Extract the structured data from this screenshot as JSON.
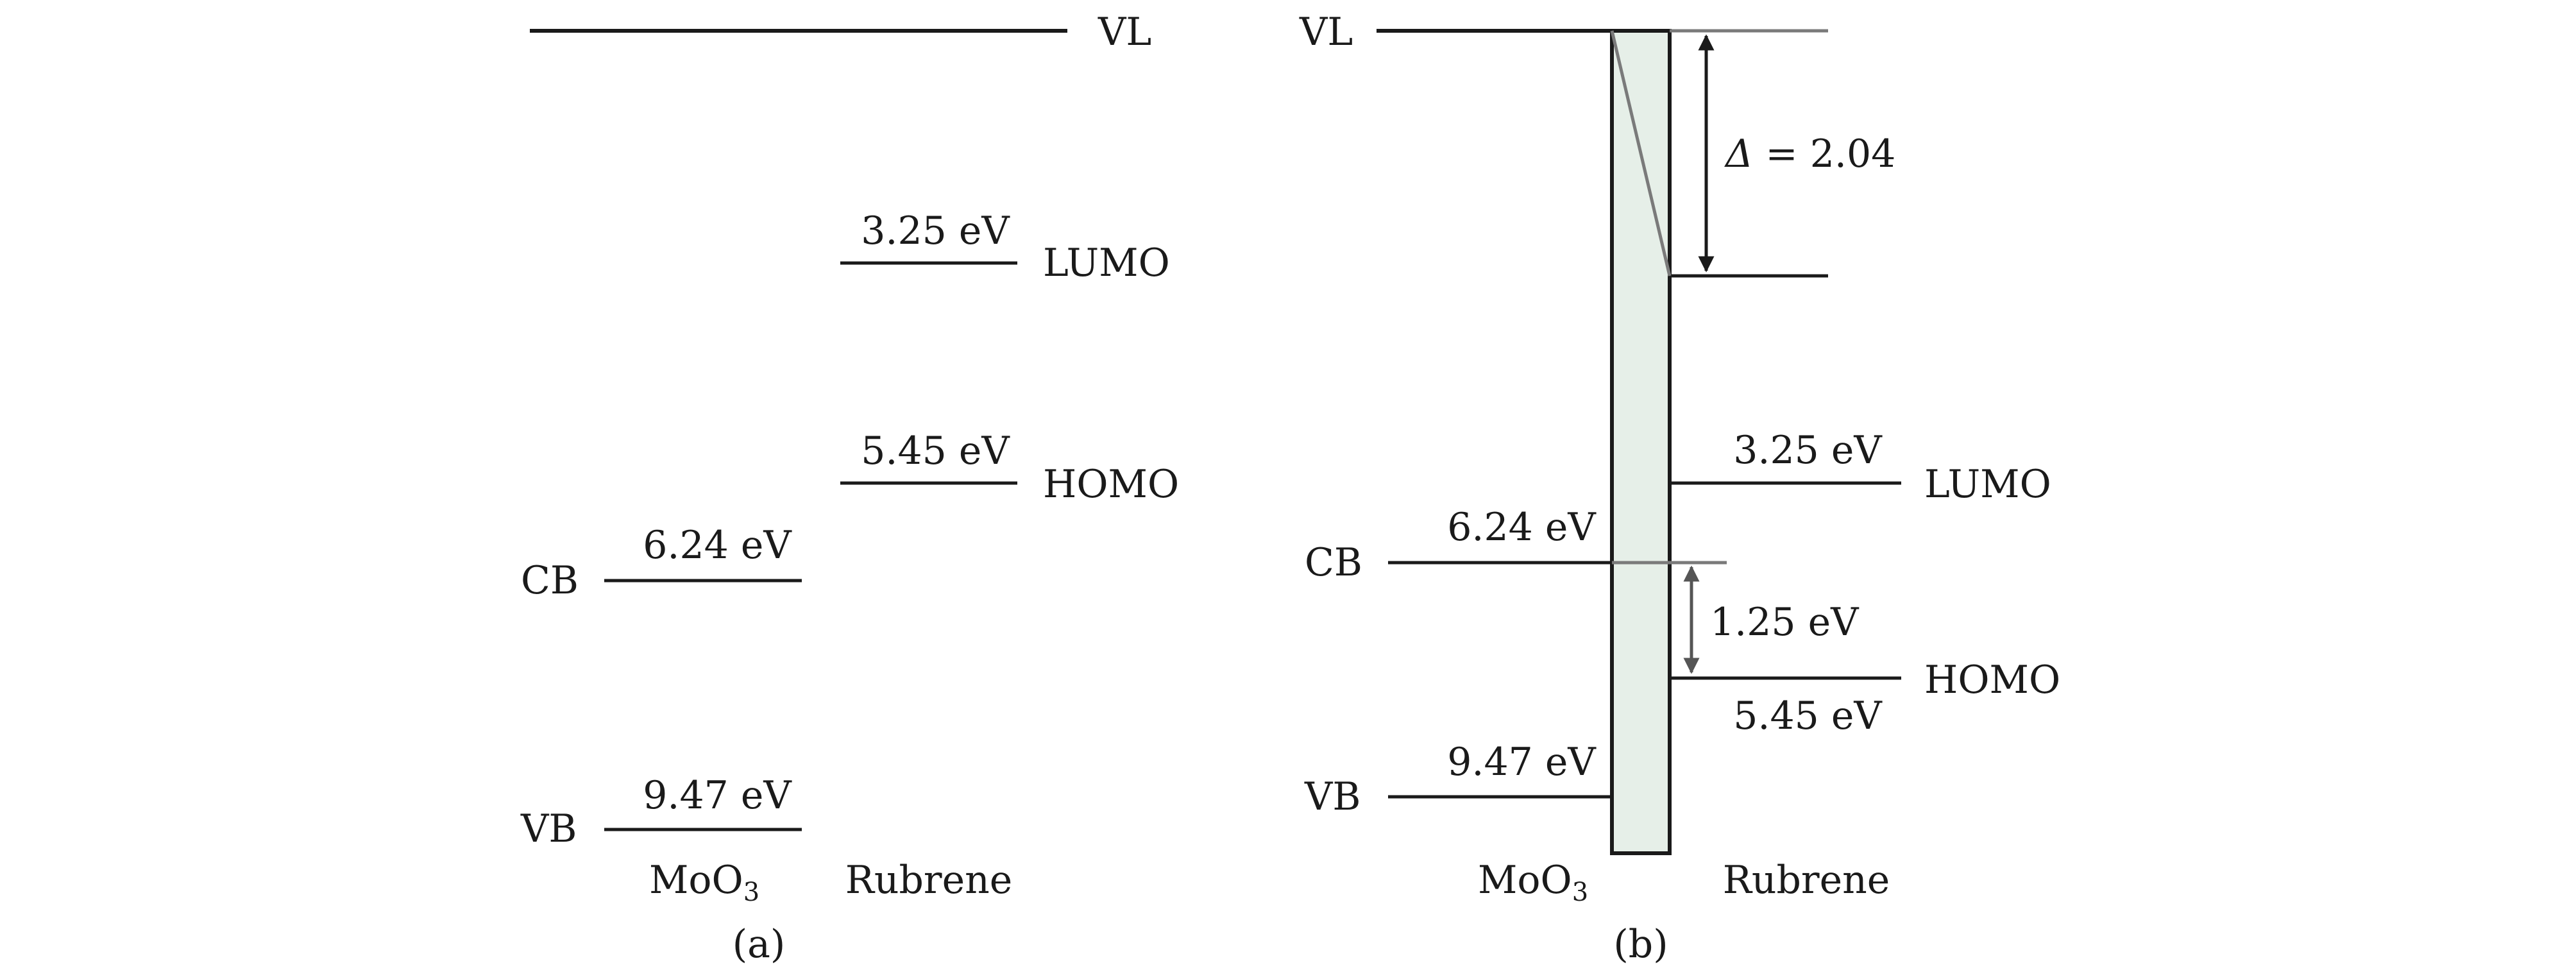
{
  "panel_a": {
    "vacuum": "VL",
    "lumo_value": "3.25 eV",
    "lumo": "LUMO",
    "homo_value": "5.45 eV",
    "homo": "HOMO",
    "cb": "CB",
    "cb_value": "6.24 eV",
    "vb": "VB",
    "vb_value": "9.47 eV",
    "material_left": "MoO",
    "material_left_sub": "3",
    "material_right": "Rubrene",
    "caption": "(a)"
  },
  "panel_b": {
    "vacuum": "VL",
    "delta_symbol": "Δ",
    "delta_text": " = 2.04",
    "lumo_value": "3.25 eV",
    "lumo": "LUMO",
    "cb": "CB",
    "cb_value": "6.24 eV",
    "gap_value": "1.25 eV",
    "homo": "HOMO",
    "homo_value": "5.45 eV",
    "vb": "VB",
    "vb_value": "9.47 eV",
    "material_left": "MoO",
    "material_left_sub": "3",
    "material_right": "Rubrene",
    "caption": "(b)"
  },
  "colors": {
    "line": "#1a1a1a",
    "gray_line": "#7a7a7a",
    "interface_fill": "#e6efe8"
  }
}
